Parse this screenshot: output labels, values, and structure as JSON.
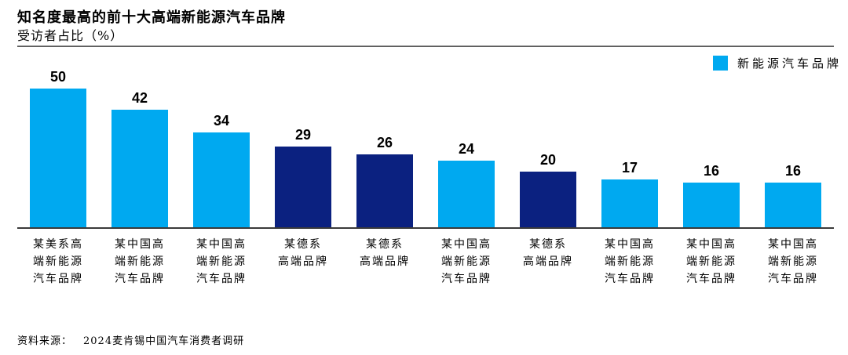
{
  "header": {
    "title": "知名度最高的前十大高端新能源汽车品牌",
    "subtitle": "受访者占比（%）"
  },
  "legend": {
    "label": "新能源汽车品牌"
  },
  "footer": {
    "source_label": "资料来源：",
    "source_text": "2024麦肯锡中国汽车消费者调研"
  },
  "colors": {
    "light_blue": "#00A9F0",
    "dark_blue": "#0B2180",
    "axis": "#3A3A3A"
  },
  "chart_data": {
    "type": "bar",
    "title": "知名度最高的前十大高端新能源汽车品牌",
    "ylabel": "受访者占比（%）",
    "ylim": [
      0,
      50
    ],
    "grid": false,
    "legend_position": "top-right",
    "legend_entries": [
      "新能源汽车品牌"
    ],
    "categories": [
      "某美系高端新能源汽车品牌",
      "某中国高端新能源汽车品牌",
      "某中国高端新能源汽车品牌",
      "某德系高端品牌",
      "某德系高端品牌",
      "某中国高端新能源汽车品牌",
      "某德系高端品牌",
      "某中国高端新能源汽车品牌",
      "某中国高端新能源汽车品牌",
      "某中国高端新能源汽车品牌"
    ],
    "category_lines": [
      "某美系高\n端新能源\n汽车品牌",
      "某中国高\n端新能源\n汽车品牌",
      "某中国高\n端新能源\n汽车品牌",
      "某德系\n高端品牌",
      "某德系\n高端品牌",
      "某中国高\n端新能源\n汽车品牌",
      "某德系\n高端品牌",
      "某中国高\n端新能源\n汽车品牌",
      "某中国高\n端新能源\n汽车品牌",
      "某中国高\n端新能源\n汽车品牌"
    ],
    "values": [
      50,
      42,
      34,
      29,
      26,
      24,
      20,
      17,
      16,
      16
    ],
    "bar_colors": [
      "light",
      "light",
      "light",
      "dark",
      "dark",
      "light",
      "dark",
      "light",
      "light",
      "light"
    ]
  }
}
